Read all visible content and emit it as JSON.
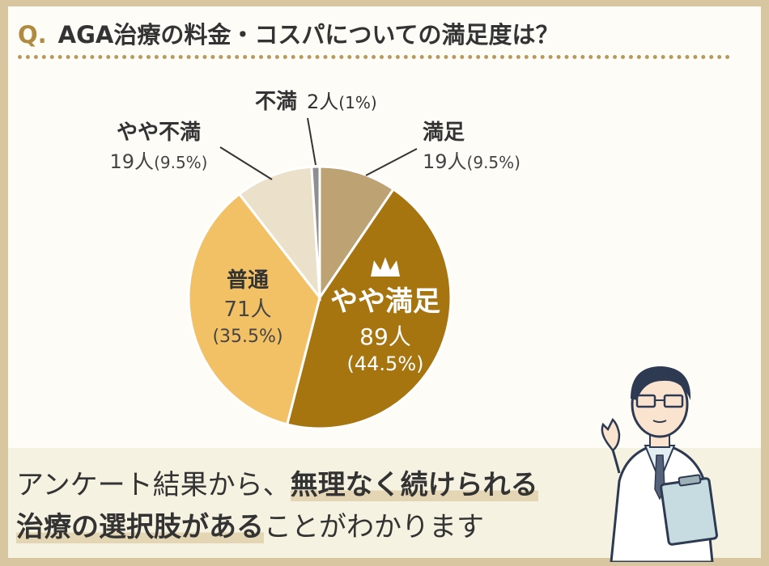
{
  "title": {
    "prefix": "Q.",
    "text": "AGA治療の料金・コスパについての満足度は？"
  },
  "chart_data": {
    "type": "pie",
    "slices": [
      {
        "label": "満足",
        "count": 19,
        "count_text": "19人",
        "percent": 9.5,
        "percent_text": "(9.5%)",
        "color": "#bda274"
      },
      {
        "label": "やや満足",
        "count": 89,
        "count_text": "89人",
        "percent": 44.5,
        "percent_text": "(44.5%)",
        "color": "#a7750f",
        "highlight": true
      },
      {
        "label": "普通",
        "count": 71,
        "count_text": "71人",
        "percent": 35.5,
        "percent_text": "(35.5%)",
        "color": "#f3c165"
      },
      {
        "label": "やや不満",
        "count": 19,
        "count_text": "19人",
        "percent": 9.5,
        "percent_text": "(9.5%)",
        "color": "#ebe0c9"
      },
      {
        "label": "不満",
        "count": 2,
        "count_text": "2人",
        "percent": 1,
        "percent_text": "(1%)",
        "color": "#8f8f8f"
      }
    ]
  },
  "summary": {
    "line1_plain": "アンケート結果から、",
    "line1_bold": "無理なく続けられる",
    "line2_bold": "治療の選択肢がある",
    "line2_plain": "ことがわかります"
  },
  "colors": {
    "accent": "#b08a3e",
    "border": "#d8c6a0"
  }
}
